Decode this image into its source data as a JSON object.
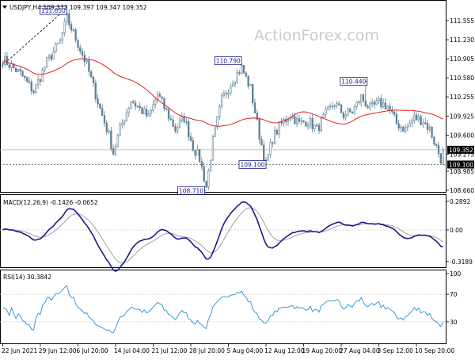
{
  "header": {
    "title": "USDJPY,H4 109.372 109.397 109.347 109.352"
  },
  "watermark": "ActionForex.com",
  "colors": {
    "candle": "#5b7f96",
    "ma": "#e02020",
    "macd_line": "#1a1a8c",
    "macd_signal": "#a0a0a0",
    "rsi": "#3a9ad9",
    "price_tag_bg": "#000000",
    "grid": "#c8c8c8"
  },
  "chart_data": [
    {
      "type": "candlestick",
      "panel": "price",
      "ylim": [
        108.66,
        111.8
      ],
      "yticks": [
        "111.555",
        "111.230",
        "110.905",
        "110.580",
        "110.255",
        "109.925",
        "109.600",
        "109.275",
        "108.985",
        "108.660"
      ],
      "ytick_values": [
        111.555,
        111.23,
        110.905,
        110.58,
        110.255,
        109.925,
        109.6,
        109.275,
        108.985,
        108.66
      ],
      "current_price": "109.352",
      "support_price": "109.100",
      "annotations": [
        {
          "label": "111.650",
          "value": 111.65,
          "position": "left"
        },
        {
          "label": "110.790",
          "value": 110.79,
          "position": "left"
        },
        {
          "label": "110.440",
          "value": 110.44,
          "position": "right"
        },
        {
          "label": "109.100",
          "value": 109.1,
          "position": "left"
        },
        {
          "label": "108.710",
          "value": 108.71,
          "position": "left"
        }
      ],
      "series": [
        {
          "name": "",
          "anchors": [
            [
              0,
              110.9
            ],
            [
              8,
              110.65
            ],
            [
              14,
              110.35
            ],
            [
              20,
              110.85
            ],
            [
              26,
              111.2
            ],
            [
              29,
              111.6
            ],
            [
              33,
              111.25
            ],
            [
              38,
              110.8
            ],
            [
              44,
              110.05
            ],
            [
              48,
              109.6
            ],
            [
              50,
              109.3
            ],
            [
              53,
              109.7
            ],
            [
              58,
              110.2
            ],
            [
              62,
              110.05
            ],
            [
              66,
              109.9
            ],
            [
              70,
              110.3
            ],
            [
              74,
              110.0
            ],
            [
              78,
              109.7
            ],
            [
              82,
              109.9
            ],
            [
              86,
              109.4
            ],
            [
              89,
              109.2
            ],
            [
              92,
              108.72
            ],
            [
              95,
              109.5
            ],
            [
              99,
              110.2
            ],
            [
              104,
              110.55
            ],
            [
              108,
              110.75
            ],
            [
              112,
              110.4
            ],
            [
              116,
              109.6
            ],
            [
              119,
              109.1
            ],
            [
              122,
              109.55
            ],
            [
              126,
              109.8
            ],
            [
              130,
              109.95
            ],
            [
              134,
              109.8
            ],
            [
              138,
              109.85
            ],
            [
              142,
              109.7
            ],
            [
              146,
              109.95
            ],
            [
              150,
              110.15
            ],
            [
              154,
              109.95
            ],
            [
              158,
              110.0
            ],
            [
              162,
              110.25
            ],
            [
              166,
              110.05
            ],
            [
              170,
              110.15
            ],
            [
              174,
              110.1
            ],
            [
              178,
              109.8
            ],
            [
              182,
              109.7
            ],
            [
              186,
              109.9
            ],
            [
              190,
              109.85
            ],
            [
              193,
              109.7
            ],
            [
              196,
              109.4
            ],
            [
              198,
              109.2
            ],
            [
              199,
              109.35
            ]
          ],
          "ma_period": 40
        }
      ]
    },
    {
      "type": "line",
      "panel": "macd",
      "title": "MACD(12,26,9) -0.1426 -0.0652",
      "ylim": [
        -0.36,
        0.32
      ],
      "yticks": [
        "0.2892",
        "0.00",
        "-0.3189"
      ],
      "ytick_values": [
        0.2892,
        0.0,
        -0.3189
      ],
      "series": [
        {
          "name": "MACD",
          "values_from": "price"
        },
        {
          "name": "Signal",
          "values_from": "macd"
        }
      ]
    },
    {
      "type": "line",
      "panel": "rsi",
      "title": "RSI(14) 30.3842",
      "ylim": [
        0,
        100
      ],
      "yticks": [
        "100",
        "70",
        "30",
        "0"
      ],
      "ytick_values": [
        100,
        70,
        30,
        0
      ],
      "levels": [
        70,
        30
      ],
      "series": [
        {
          "name": "RSI",
          "values_from": "price"
        }
      ]
    }
  ],
  "x_axis": {
    "labels": [
      "22 Jun 2021",
      "29 Jun 12:00",
      "6 Jul 20:00",
      "14 Jul 04:00",
      "21 Jul 12:00",
      "28 Jul 20:00",
      "5 Aug 04:00",
      "12 Aug 12:00",
      "19 Aug 20:00",
      "27 Aug 04:00",
      "3 Sep 12:00",
      "10 Sep 20:00"
    ],
    "label_bars": [
      0,
      17,
      34,
      51,
      68,
      85,
      102,
      119,
      136,
      153,
      170,
      187
    ],
    "bars": 200
  }
}
